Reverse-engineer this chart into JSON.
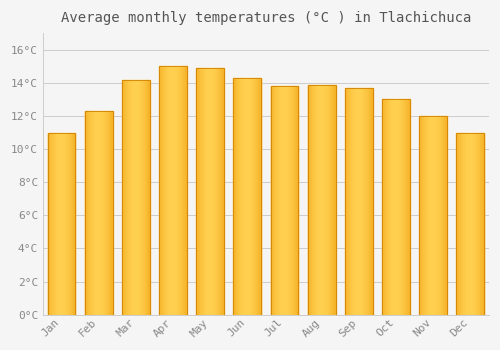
{
  "months": [
    "Jan",
    "Feb",
    "Mar",
    "Apr",
    "May",
    "Jun",
    "Jul",
    "Aug",
    "Sep",
    "Oct",
    "Nov",
    "Dec"
  ],
  "values": [
    11.0,
    12.3,
    14.2,
    15.0,
    14.9,
    14.3,
    13.8,
    13.9,
    13.7,
    13.0,
    12.0,
    11.0
  ],
  "bar_color_center": "#FFD050",
  "bar_color_edge": "#F0A010",
  "title": "Average monthly temperatures (°C ) in Tlachichuca",
  "title_fontsize": 10,
  "ytick_labels": [
    "0°C",
    "2°C",
    "4°C",
    "6°C",
    "8°C",
    "10°C",
    "12°C",
    "14°C",
    "16°C"
  ],
  "ytick_values": [
    0,
    2,
    4,
    6,
    8,
    10,
    12,
    14,
    16
  ],
  "ylim": [
    0,
    17.0
  ],
  "background_color": "#f5f5f5",
  "plot_bg_color": "#f5f5f5",
  "grid_color": "#cccccc",
  "tick_label_color": "#888888",
  "title_color": "#555555",
  "font_family": "monospace",
  "bar_width": 0.75
}
